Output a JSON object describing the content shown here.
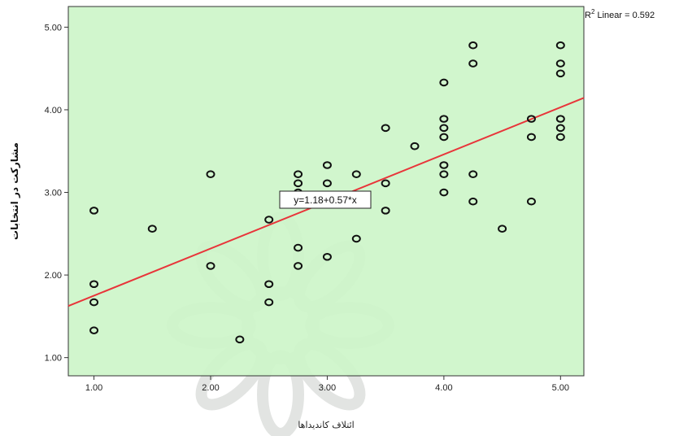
{
  "chart_data": {
    "type": "scatter",
    "xlabel": "ائتلاف کاندیداها",
    "ylabel": "مشارکت در انتخابات",
    "xlim": [
      0.78,
      5.2
    ],
    "ylim": [
      0.78,
      5.25
    ],
    "x_ticks": [
      "1.00",
      "2.00",
      "3.00",
      "4.00",
      "5.00"
    ],
    "y_ticks": [
      "1.00",
      "2.00",
      "3.00",
      "4.00",
      "5.00"
    ],
    "grid": false,
    "legend": "",
    "background_color": "#cdf5c9",
    "marker_color": "#111111",
    "fit_line_color": "#e8353a",
    "fit": {
      "intercept": 1.18,
      "slope": 0.57,
      "equation_label": "y=1.18+0.57*x"
    },
    "r2": {
      "label": "R",
      "sup": "2",
      "text": " Linear = 0.592"
    },
    "points": [
      [
        1.0,
        2.78
      ],
      [
        1.0,
        1.89
      ],
      [
        1.0,
        1.67
      ],
      [
        1.0,
        1.33
      ],
      [
        1.5,
        2.56
      ],
      [
        2.0,
        3.22
      ],
      [
        2.0,
        2.11
      ],
      [
        2.25,
        1.22
      ],
      [
        2.5,
        2.67
      ],
      [
        2.5,
        1.89
      ],
      [
        2.5,
        1.67
      ],
      [
        2.75,
        3.22
      ],
      [
        2.75,
        3.11
      ],
      [
        2.75,
        3.0
      ],
      [
        2.75,
        2.33
      ],
      [
        2.75,
        2.11
      ],
      [
        3.0,
        3.33
      ],
      [
        3.0,
        3.11
      ],
      [
        3.0,
        2.22
      ],
      [
        3.25,
        3.22
      ],
      [
        3.25,
        2.44
      ],
      [
        3.5,
        3.78
      ],
      [
        3.5,
        3.11
      ],
      [
        3.5,
        2.78
      ],
      [
        3.75,
        3.56
      ],
      [
        4.0,
        4.33
      ],
      [
        4.0,
        3.89
      ],
      [
        4.0,
        3.78
      ],
      [
        4.0,
        3.67
      ],
      [
        4.0,
        3.33
      ],
      [
        4.0,
        3.22
      ],
      [
        4.0,
        3.0
      ],
      [
        4.25,
        4.78
      ],
      [
        4.25,
        4.56
      ],
      [
        4.25,
        3.22
      ],
      [
        4.25,
        2.89
      ],
      [
        4.5,
        2.56
      ],
      [
        4.75,
        3.89
      ],
      [
        4.75,
        3.67
      ],
      [
        4.75,
        2.89
      ],
      [
        5.0,
        4.78
      ],
      [
        5.0,
        4.56
      ],
      [
        5.0,
        4.44
      ],
      [
        5.0,
        3.89
      ],
      [
        5.0,
        3.78
      ],
      [
        5.0,
        3.67
      ]
    ]
  }
}
